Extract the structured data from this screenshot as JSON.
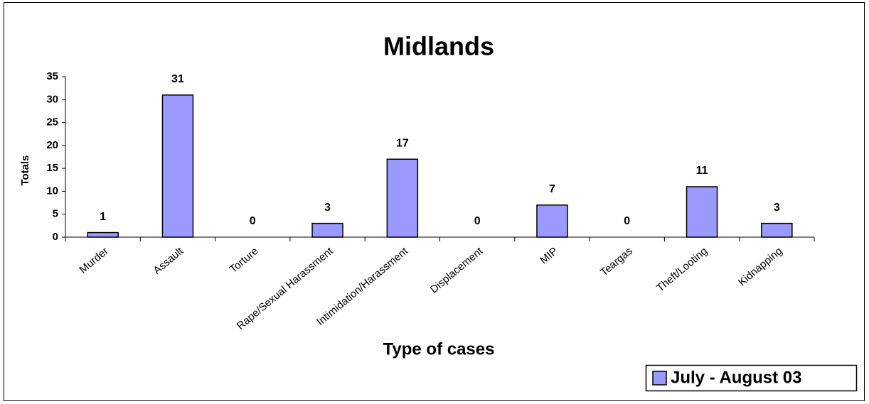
{
  "chart_data": {
    "type": "bar",
    "title": "Midlands",
    "x_label": "Type of cases",
    "y_label": "Totals",
    "categories": [
      "Murder",
      "Assault",
      "Torture",
      "Rape/Sexual Harassment",
      "Intimidation/Harassment",
      "Displacement",
      "MIP",
      "Teargas",
      "Theft/Looting",
      "Kidnapping"
    ],
    "series": [
      {
        "name": "July - August 03",
        "color": "#9999ff",
        "values": [
          1,
          31,
          0,
          3,
          17,
          0,
          7,
          0,
          11,
          3
        ]
      }
    ],
    "ylim": [
      0,
      35
    ],
    "yticks": [
      0,
      5,
      10,
      15,
      20,
      25,
      30,
      35
    ],
    "grid": false,
    "legend": "bottom-right"
  }
}
